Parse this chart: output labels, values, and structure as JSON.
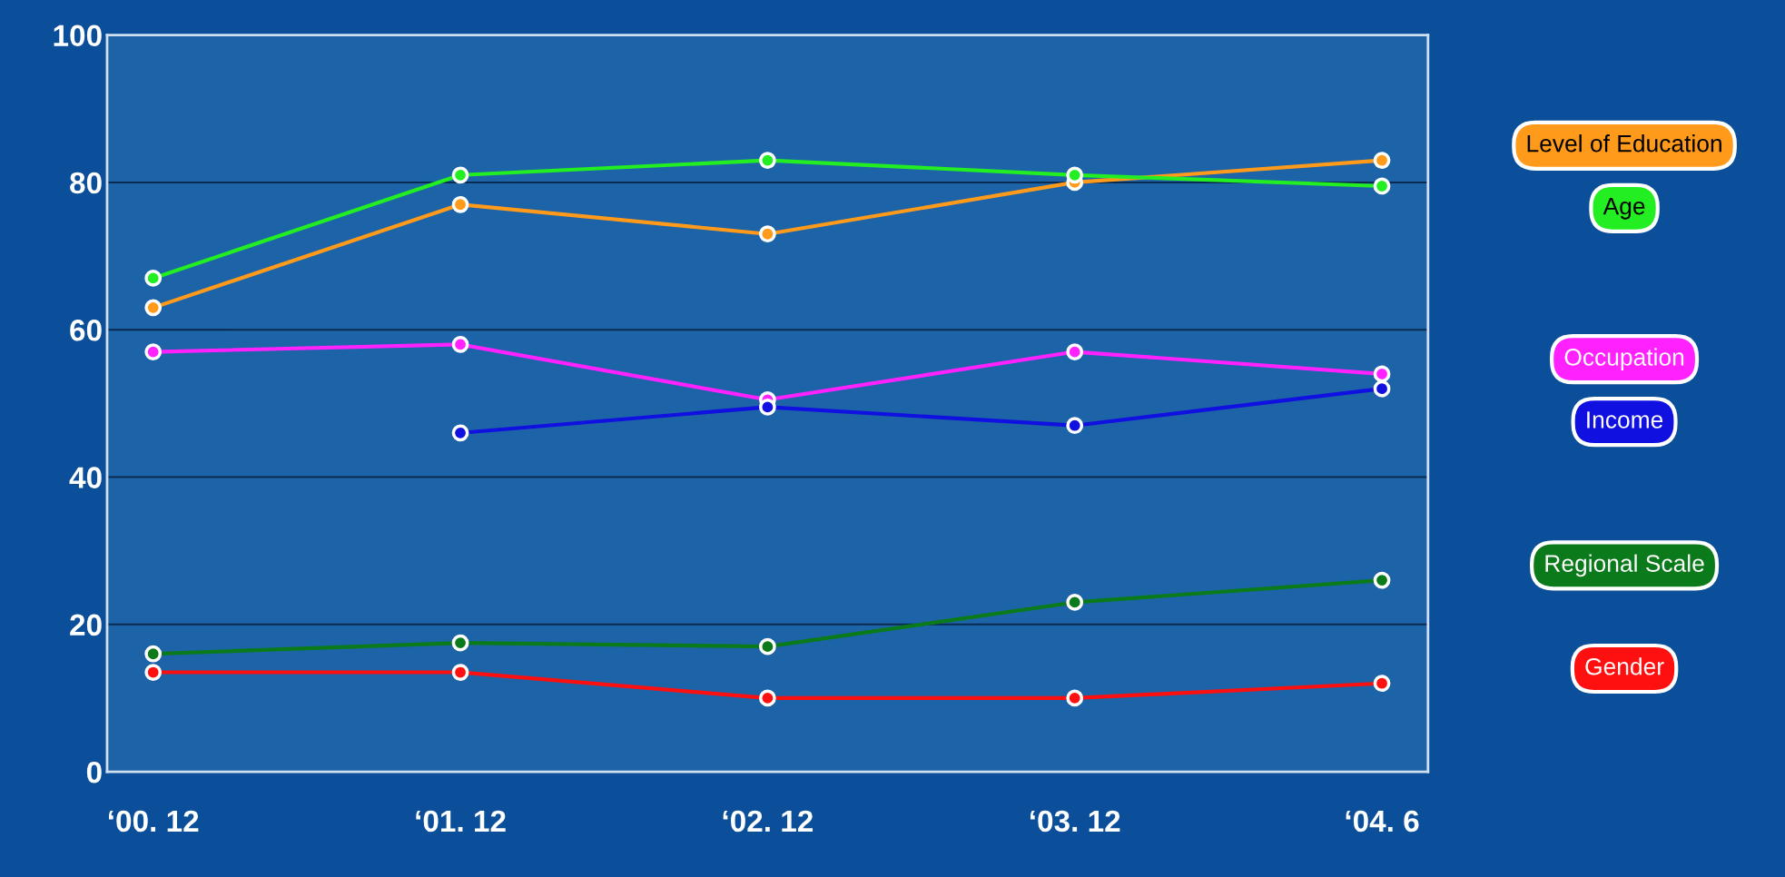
{
  "chart_data": {
    "type": "line",
    "categories": [
      "‘00. 12",
      "‘01. 12",
      "‘02. 12",
      "‘03. 12",
      "‘04. 6"
    ],
    "series": [
      {
        "name": "Level of Education",
        "color": "#ff9a1a",
        "values": [
          63,
          77,
          73,
          80,
          83
        ]
      },
      {
        "name": "Age",
        "color": "#22ee22",
        "values": [
          67,
          81,
          83,
          81,
          79.5
        ]
      },
      {
        "name": "Occupation",
        "color": "#ff22ff",
        "values": [
          57,
          58,
          50.5,
          57,
          54
        ]
      },
      {
        "name": "Income",
        "color": "#1010e0",
        "values": [
          null,
          46,
          49.5,
          47,
          52
        ]
      },
      {
        "name": "Regional Scale",
        "color": "#0a7a1a",
        "values": [
          16,
          17.5,
          17,
          23,
          26
        ]
      },
      {
        "name": "Gender",
        "color": "#ff1010",
        "values": [
          13.5,
          13.5,
          10,
          10,
          12
        ]
      }
    ],
    "ylim": [
      0,
      100
    ],
    "yticks": [
      0,
      20,
      40,
      60,
      80,
      100
    ],
    "grid": "y",
    "legend": "right",
    "marker": "circle",
    "line_style": "solid"
  }
}
